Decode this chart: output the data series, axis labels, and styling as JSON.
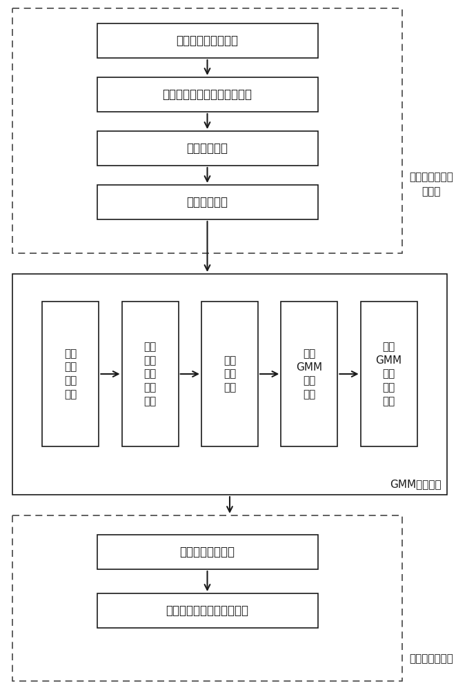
{
  "bg_color": "#ffffff",
  "text_color": "#1a1a1a",
  "section1_label": "获取原始行程时\n间数据",
  "section2_label": "GMM聚类分析",
  "section3_label": "算法测试及应用",
  "section1_boxes": [
    "收费数据、卡口数据",
    "车牌匹配，提取路段行程时间",
    "路段空间匹配",
    "异常数据处理"
  ],
  "section2_boxes": [
    "滚动\n时间\n间隔\n合成",
    "计算\n路段\n平均\n行程\n速度",
    "提取\n相关\n特征",
    "确定\nGMM\n模型\n参数",
    "建立\nGMM\n进行\n聚类\n分析"
  ],
  "section3_boxes": [
    "测试算法检测性能",
    "收费站间路段交通拥堵检测"
  ],
  "font_size_main": 12,
  "font_size_small": 11,
  "font_size_label": 11
}
